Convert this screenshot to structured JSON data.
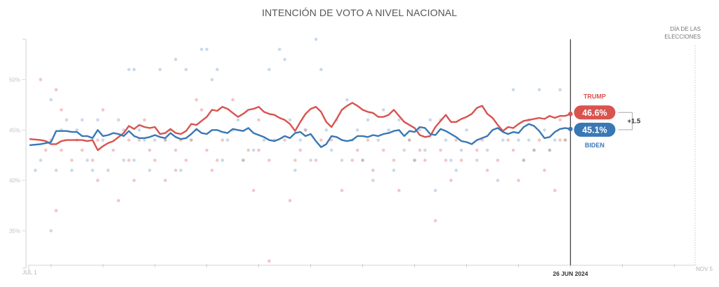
{
  "title": "INTENCIÓN DE VOTO A NIVEL NACIONAL",
  "colors": {
    "trump": "#d9534f",
    "biden": "#3a78b5",
    "trump_dot": "#f2bcbc",
    "biden_dot": "#c3d6ea",
    "overlap_dot": "#b79aa0"
  },
  "chart_data": {
    "type": "line",
    "title": "INTENCIÓN DE VOTO A NIVEL NACIONAL",
    "xlabel": "",
    "ylabel": "",
    "ylim": [
      32,
      54
    ],
    "yticks": [
      35,
      40,
      45,
      50
    ],
    "ytick_labels": [
      "35%",
      "40%",
      "45%",
      "50%"
    ],
    "x_domain_days": [
      0,
      128
    ],
    "x_tick_days": [
      4,
      14,
      24,
      34,
      44,
      54,
      64,
      74,
      84,
      94,
      104,
      114,
      124
    ],
    "x_labels": [
      {
        "day": 0,
        "label": "JUL 1"
      },
      {
        "day": 128,
        "label": "NOV 5"
      }
    ],
    "today": {
      "day": 104,
      "label": "26 JUN 2024"
    },
    "election_day": {
      "day": 128,
      "label_line1": "DÍA DE LAS",
      "label_line2": "ELECCIONES"
    },
    "legend": "direct-labels-right",
    "series": [
      {
        "name": "TRUMP",
        "key": "trump",
        "x": [
          0,
          2,
          3,
          4,
          5,
          6,
          7,
          8,
          9,
          10,
          11,
          12,
          13,
          14,
          15,
          16,
          17,
          18,
          19,
          20,
          21,
          22,
          23,
          24,
          25,
          26,
          27,
          28,
          29,
          30,
          31,
          32,
          33,
          34,
          35,
          36,
          37,
          38,
          39,
          40,
          41,
          42,
          43,
          44,
          45,
          46,
          47,
          48,
          49,
          50,
          51,
          52,
          53,
          54,
          55,
          56,
          57,
          58,
          59,
          60,
          61,
          62,
          63,
          64,
          65,
          66,
          67,
          68,
          69,
          70,
          71,
          72,
          73,
          74,
          75,
          76,
          77,
          78,
          79,
          80,
          81,
          82,
          83,
          84,
          85,
          86,
          87,
          88,
          89,
          90,
          91,
          92,
          93,
          94,
          95,
          96,
          97,
          98,
          99,
          100,
          101,
          102,
          103,
          104
        ],
        "values": [
          44.1,
          44.0,
          43.9,
          43.6,
          43.6,
          43.9,
          44.0,
          44.0,
          44.0,
          44.0,
          43.9,
          44.0,
          43.0,
          43.4,
          43.7,
          43.9,
          44.3,
          44.7,
          45.4,
          45.1,
          45.5,
          45.3,
          45.2,
          45.3,
          44.6,
          44.7,
          45.1,
          44.7,
          44.6,
          44.9,
          45.6,
          45.5,
          45.9,
          46.3,
          47.0,
          46.9,
          47.3,
          47.1,
          46.7,
          46.3,
          46.6,
          47.0,
          47.1,
          47.3,
          46.8,
          46.6,
          46.5,
          46.2,
          46.0,
          45.6,
          44.9,
          45.8,
          46.6,
          47.1,
          47.3,
          46.8,
          45.8,
          45.3,
          46.1,
          47.0,
          47.4,
          47.7,
          47.4,
          47.0,
          46.8,
          46.7,
          46.3,
          46.3,
          46.5,
          47.0,
          46.4,
          45.8,
          45.5,
          45.2,
          44.5,
          44.3,
          44.4,
          45.3,
          45.9,
          46.5,
          45.8,
          45.8,
          46.1,
          46.3,
          46.6,
          47.2,
          47.4,
          46.6,
          46.2,
          45.5,
          44.9,
          45.3,
          45.2,
          45.6,
          45.9,
          46.0,
          46.1,
          46.2,
          46.1,
          46.4,
          46.2,
          46.4,
          46.4,
          46.6
        ]
      },
      {
        "name": "BIDEN",
        "key": "biden",
        "x": [
          0,
          2,
          3,
          4,
          5,
          6,
          7,
          8,
          9,
          10,
          11,
          12,
          13,
          14,
          15,
          16,
          17,
          18,
          19,
          20,
          21,
          22,
          23,
          24,
          25,
          26,
          27,
          28,
          29,
          30,
          31,
          32,
          33,
          34,
          35,
          36,
          37,
          38,
          39,
          40,
          41,
          42,
          43,
          44,
          45,
          46,
          47,
          48,
          49,
          50,
          51,
          52,
          53,
          54,
          55,
          56,
          57,
          58,
          59,
          60,
          61,
          62,
          63,
          64,
          65,
          66,
          67,
          68,
          69,
          70,
          71,
          72,
          73,
          74,
          75,
          76,
          77,
          78,
          79,
          80,
          81,
          82,
          83,
          84,
          85,
          86,
          87,
          88,
          89,
          90,
          91,
          92,
          93,
          94,
          95,
          96,
          97,
          98,
          99,
          100,
          101,
          102,
          103,
          104
        ],
        "values": [
          43.5,
          43.6,
          43.7,
          43.8,
          44.9,
          44.9,
          44.9,
          44.8,
          44.8,
          44.4,
          44.4,
          44.2,
          45.0,
          44.4,
          44.5,
          44.7,
          44.6,
          44.4,
          44.9,
          44.4,
          44.2,
          44.2,
          44.3,
          44.5,
          44.3,
          44.2,
          44.7,
          44.3,
          44.1,
          44.2,
          44.6,
          45.1,
          44.7,
          44.6,
          45.0,
          45.0,
          44.8,
          44.7,
          45.1,
          45.0,
          44.9,
          45.2,
          44.7,
          44.5,
          44.3,
          44.0,
          43.9,
          44.1,
          44.4,
          44.2,
          44.7,
          44.8,
          44.4,
          44.6,
          43.9,
          43.3,
          43.6,
          44.4,
          44.3,
          44.0,
          43.9,
          44.0,
          44.4,
          44.4,
          44.3,
          44.5,
          44.4,
          44.6,
          44.7,
          44.9,
          45.0,
          44.4,
          44.9,
          44.8,
          45.3,
          45.2,
          44.6,
          44.5,
          45.1,
          44.9,
          44.6,
          44.3,
          43.9,
          43.8,
          43.6,
          44.0,
          44.2,
          44.4,
          45.0,
          45.2,
          44.8,
          44.6,
          44.8,
          44.7,
          45.3,
          45.6,
          45.4,
          44.9,
          44.2,
          44.3,
          44.8,
          45.1,
          45.2,
          45.1
        ]
      }
    ],
    "polls_trump": [
      [
        2,
        50
      ],
      [
        3,
        43
      ],
      [
        4,
        44
      ],
      [
        5,
        37
      ],
      [
        5,
        49
      ],
      [
        6,
        47
      ],
      [
        6,
        43
      ],
      [
        8,
        42
      ],
      [
        9,
        44
      ],
      [
        10,
        43
      ],
      [
        12,
        42
      ],
      [
        13,
        44
      ],
      [
        13,
        40
      ],
      [
        14,
        47
      ],
      [
        16,
        43
      ],
      [
        17,
        38
      ],
      [
        19,
        42
      ],
      [
        19,
        44
      ],
      [
        20,
        40
      ],
      [
        21,
        44
      ],
      [
        22,
        46
      ],
      [
        23,
        43
      ],
      [
        24,
        42
      ],
      [
        26,
        40
      ],
      [
        26,
        44
      ],
      [
        28,
        41
      ],
      [
        28,
        43
      ],
      [
        29,
        44
      ],
      [
        30,
        42
      ],
      [
        31,
        44
      ],
      [
        32,
        48
      ],
      [
        33,
        47
      ],
      [
        34,
        43
      ],
      [
        35,
        41
      ],
      [
        36,
        42
      ],
      [
        37,
        44
      ],
      [
        39,
        48
      ],
      [
        41,
        42
      ],
      [
        42,
        43
      ],
      [
        43,
        39
      ],
      [
        44,
        46
      ],
      [
        44,
        43
      ],
      [
        46,
        42
      ],
      [
        47,
        44
      ],
      [
        49,
        44
      ],
      [
        50,
        38
      ],
      [
        51,
        42
      ],
      [
        52,
        43
      ],
      [
        53,
        45
      ],
      [
        55,
        42
      ],
      [
        56,
        44
      ],
      [
        58,
        44
      ],
      [
        60,
        39
      ],
      [
        62,
        42
      ],
      [
        63,
        43
      ],
      [
        64,
        42
      ],
      [
        65,
        44
      ],
      [
        66,
        41
      ],
      [
        68,
        43
      ],
      [
        70,
        42
      ],
      [
        71,
        39
      ],
      [
        73,
        44
      ],
      [
        74,
        42
      ],
      [
        75,
        43
      ],
      [
        76,
        42
      ],
      [
        78,
        36
      ],
      [
        79,
        43
      ],
      [
        80,
        42
      ],
      [
        81,
        40
      ],
      [
        82,
        44
      ],
      [
        83,
        42
      ],
      [
        86,
        43
      ],
      [
        87,
        44
      ],
      [
        88,
        41
      ],
      [
        90,
        42
      ],
      [
        92,
        44
      ],
      [
        93,
        43
      ],
      [
        94,
        40
      ],
      [
        95,
        42
      ],
      [
        96,
        46
      ],
      [
        97,
        43
      ],
      [
        98,
        44
      ],
      [
        99,
        41
      ],
      [
        100,
        43
      ],
      [
        101,
        39
      ],
      [
        102,
        46
      ],
      [
        102,
        44
      ],
      [
        103,
        44
      ],
      [
        46,
        32
      ]
    ],
    "polls_biden": [
      [
        1,
        41
      ],
      [
        2,
        42
      ],
      [
        4,
        48
      ],
      [
        4,
        35
      ],
      [
        5,
        41
      ],
      [
        6,
        45
      ],
      [
        7,
        46
      ],
      [
        8,
        41
      ],
      [
        9,
        45
      ],
      [
        10,
        46
      ],
      [
        11,
        42
      ],
      [
        12,
        41
      ],
      [
        13,
        46
      ],
      [
        14,
        44
      ],
      [
        15,
        41
      ],
      [
        17,
        46
      ],
      [
        18,
        42
      ],
      [
        18,
        45
      ],
      [
        19,
        51
      ],
      [
        20,
        51
      ],
      [
        20,
        42
      ],
      [
        21,
        45
      ],
      [
        22,
        44
      ],
      [
        23,
        41
      ],
      [
        24,
        44
      ],
      [
        25,
        51
      ],
      [
        26,
        44
      ],
      [
        27,
        45
      ],
      [
        28,
        52
      ],
      [
        29,
        41
      ],
      [
        30,
        51
      ],
      [
        31,
        44
      ],
      [
        32,
        45
      ],
      [
        33,
        53
      ],
      [
        34,
        53
      ],
      [
        35,
        50
      ],
      [
        36,
        51
      ],
      [
        37,
        42
      ],
      [
        38,
        44
      ],
      [
        39,
        45
      ],
      [
        40,
        46
      ],
      [
        41,
        42
      ],
      [
        43,
        43
      ],
      [
        45,
        44
      ],
      [
        46,
        51
      ],
      [
        48,
        53
      ],
      [
        49,
        52
      ],
      [
        50,
        46
      ],
      [
        51,
        41
      ],
      [
        52,
        44
      ],
      [
        53,
        45
      ],
      [
        54,
        42
      ],
      [
        55,
        54
      ],
      [
        56,
        51
      ],
      [
        57,
        45
      ],
      [
        58,
        43
      ],
      [
        59,
        46
      ],
      [
        60,
        42
      ],
      [
        61,
        48
      ],
      [
        62,
        44
      ],
      [
        63,
        45
      ],
      [
        64,
        42
      ],
      [
        65,
        46
      ],
      [
        66,
        40
      ],
      [
        67,
        44
      ],
      [
        68,
        47
      ],
      [
        69,
        45
      ],
      [
        70,
        41
      ],
      [
        71,
        46
      ],
      [
        72,
        43
      ],
      [
        73,
        44
      ],
      [
        74,
        42
      ],
      [
        75,
        45
      ],
      [
        76,
        43
      ],
      [
        77,
        46
      ],
      [
        78,
        39
      ],
      [
        79,
        46
      ],
      [
        80,
        44
      ],
      [
        81,
        42
      ],
      [
        82,
        41
      ],
      [
        83,
        43
      ],
      [
        84,
        45
      ],
      [
        86,
        42
      ],
      [
        88,
        43
      ],
      [
        90,
        40
      ],
      [
        91,
        44
      ],
      [
        93,
        49
      ],
      [
        94,
        44
      ],
      [
        95,
        42
      ],
      [
        96,
        44
      ],
      [
        97,
        43
      ],
      [
        98,
        49
      ],
      [
        99,
        45
      ],
      [
        100,
        43
      ],
      [
        101,
        44
      ],
      [
        102,
        49
      ],
      [
        103,
        44
      ]
    ],
    "end_labels": {
      "trump": {
        "label": "TRUMP",
        "value": "46.6%"
      },
      "biden": {
        "label": "BIDEN",
        "value": "45.1%"
      },
      "margin": "+1.5"
    }
  }
}
